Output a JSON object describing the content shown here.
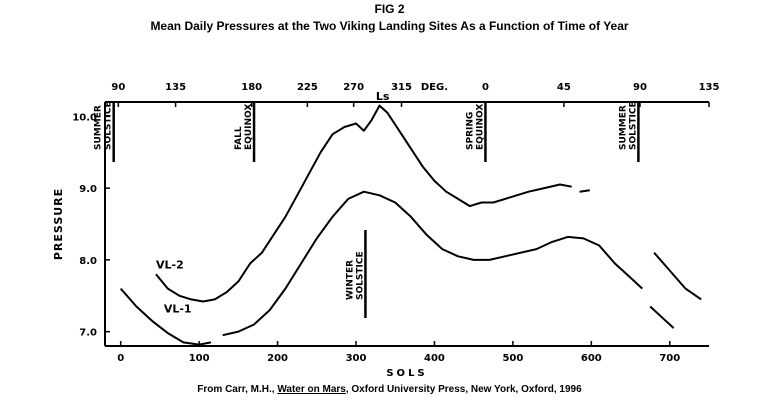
{
  "figure": {
    "label": "FIG 2",
    "title": "Mean Daily Pressures at the Two Viking Landing Sites As a Function of Time of Year",
    "caption_prefix": "From Carr, M.H., ",
    "caption_book": "Water on Mars",
    "caption_suffix": ", Oxford University Press, New York, Oxford, 1996"
  },
  "chart_data": {
    "type": "line",
    "xlabel": "SOLS",
    "ylabel": "PRESSURE",
    "xlim": [
      -20,
      750
    ],
    "ylim": [
      6.8,
      10.2
    ],
    "x_ticks": [
      0,
      100,
      200,
      300,
      400,
      500,
      600,
      700
    ],
    "y_ticks": [
      7.0,
      8.0,
      9.0,
      10.0
    ],
    "y_tick_labels": [
      "7.0",
      "8.0",
      "9.0",
      "10.0"
    ],
    "top_axis_label": "Ls",
    "top_axis_unit": "DEG.",
    "top_ticks": [
      {
        "label": "90",
        "sol": -3
      },
      {
        "label": "135",
        "sol": 70
      },
      {
        "label": "180",
        "sol": 167
      },
      {
        "label": "225",
        "sol": 238
      },
      {
        "label": "270",
        "sol": 297
      },
      {
        "label": "315",
        "sol": 358
      },
      {
        "label": "0",
        "sol": 465
      },
      {
        "label": "45",
        "sol": 565
      },
      {
        "label": "90",
        "sol": 662
      },
      {
        "label": "135",
        "sol": 750
      }
    ],
    "events": [
      {
        "label1": "SUMMER",
        "label2": "SOLSTICE",
        "sol": -12,
        "kind": "top"
      },
      {
        "label1": "FALL",
        "label2": "EQUINOX",
        "sol": 170,
        "kind": "top"
      },
      {
        "label1": "WINTER",
        "label2": "SOLSTICE",
        "sol": 312,
        "kind": "bottom"
      },
      {
        "label1": "SPRING",
        "label2": "EQUINOX",
        "sol": 465,
        "kind": "top"
      },
      {
        "label1": "SUMMER",
        "label2": "SOLSTICE",
        "sol": 660,
        "kind": "top"
      }
    ],
    "series": [
      {
        "name": "VL-2",
        "segments": [
          {
            "x": [
              45,
              60,
              75,
              90,
              105,
              120,
              135,
              150,
              165,
              180,
              195,
              210,
              225,
              240,
              255,
              270,
              285,
              300,
              310,
              320,
              330,
              340,
              355,
              370,
              385,
              400,
              415,
              430,
              445,
              460,
              475,
              490,
              505,
              520,
              540,
              560,
              575
            ],
            "y": [
              7.8,
              7.6,
              7.5,
              7.45,
              7.42,
              7.45,
              7.55,
              7.7,
              7.95,
              8.1,
              8.35,
              8.6,
              8.9,
              9.2,
              9.5,
              9.75,
              9.85,
              9.9,
              9.8,
              9.95,
              10.15,
              10.05,
              9.8,
              9.55,
              9.3,
              9.1,
              8.95,
              8.85,
              8.75,
              8.8,
              8.8,
              8.85,
              8.9,
              8.95,
              9.0,
              9.05,
              9.02
            ]
          },
          {
            "x": [
              585,
              598
            ],
            "y": [
              8.95,
              8.97
            ]
          }
        ]
      },
      {
        "name": "VL-1",
        "segments": [
          {
            "x": [
              0,
              20,
              40,
              60,
              80,
              100,
              115
            ],
            "y": [
              7.6,
              7.35,
              7.15,
              6.98,
              6.85,
              6.82,
              6.85
            ]
          },
          {
            "x": [
              130,
              150,
              170,
              190,
              210,
              230,
              250,
              270,
              290,
              310,
              330,
              350,
              370,
              390,
              410,
              430,
              450,
              470,
              490,
              510,
              530,
              550,
              570,
              590,
              610,
              630,
              650,
              665
            ],
            "y": [
              6.95,
              7.0,
              7.1,
              7.3,
              7.6,
              7.95,
              8.3,
              8.6,
              8.85,
              8.95,
              8.9,
              8.8,
              8.6,
              8.35,
              8.15,
              8.05,
              8.0,
              8.0,
              8.05,
              8.1,
              8.15,
              8.25,
              8.32,
              8.3,
              8.2,
              7.95,
              7.75,
              7.6
            ]
          },
          {
            "x": [
              675,
              690,
              705
            ],
            "y": [
              7.35,
              7.2,
              7.05
            ]
          },
          {
            "x": [
              680,
              700,
              720,
              740
            ],
            "y": [
              8.1,
              7.85,
              7.6,
              7.45
            ]
          }
        ]
      }
    ],
    "series_labels": [
      {
        "text": "VL-2",
        "x": 45,
        "y": 7.88
      },
      {
        "text": "VL-1",
        "x": 55,
        "y": 7.27
      }
    ]
  }
}
